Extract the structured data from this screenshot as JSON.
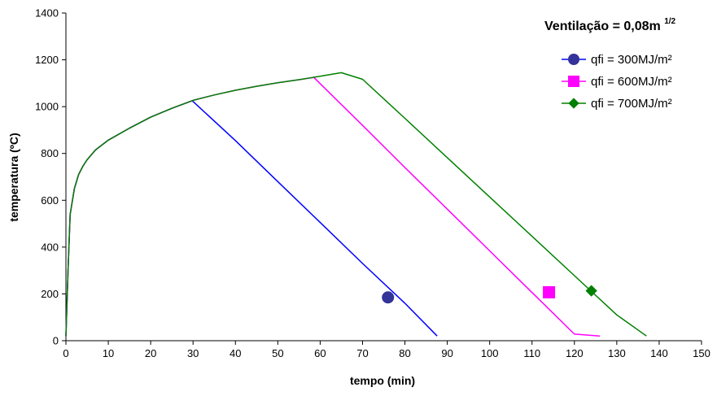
{
  "chart_data": {
    "type": "line",
    "title": "Ventilação = 0,08m",
    "title_superscript": "1/2",
    "xlabel": "tempo (min)",
    "ylabel": "temperatura (ºC)",
    "xlim": [
      0,
      150
    ],
    "ylim": [
      0,
      1400
    ],
    "x_ticks": [
      0,
      10,
      20,
      30,
      40,
      50,
      60,
      70,
      80,
      90,
      100,
      110,
      120,
      130,
      140,
      150
    ],
    "y_ticks": [
      0,
      200,
      400,
      600,
      800,
      1000,
      1200,
      1400
    ],
    "grid": false,
    "legend_position": "top-right",
    "series": [
      {
        "name": "qfi = 300MJ/m²",
        "color": "#0000ff",
        "marker": "circle",
        "marker_color": "#333399",
        "marker_point": [
          76,
          185
        ],
        "points": [
          [
            0,
            20
          ],
          [
            0.5,
            300
          ],
          [
            1,
            540
          ],
          [
            2,
            650
          ],
          [
            3,
            710
          ],
          [
            4,
            745
          ],
          [
            5,
            773
          ],
          [
            7,
            815
          ],
          [
            10,
            857
          ],
          [
            15,
            908
          ],
          [
            20,
            955
          ],
          [
            25,
            993
          ],
          [
            29.8,
            1025
          ],
          [
            40,
            855
          ],
          [
            50,
            680
          ],
          [
            60,
            505
          ],
          [
            70,
            330
          ],
          [
            80,
            160
          ],
          [
            87.6,
            20
          ]
        ]
      },
      {
        "name": "qfi = 600MJ/m²",
        "color": "#ff00ff",
        "marker": "square",
        "marker_color": "#ff00ff",
        "marker_point": [
          114,
          207
        ],
        "points": [
          [
            0,
            20
          ],
          [
            0.5,
            300
          ],
          [
            1,
            540
          ],
          [
            2,
            650
          ],
          [
            3,
            710
          ],
          [
            4,
            745
          ],
          [
            5,
            773
          ],
          [
            7,
            815
          ],
          [
            10,
            857
          ],
          [
            15,
            908
          ],
          [
            20,
            955
          ],
          [
            25,
            993
          ],
          [
            30,
            1027
          ],
          [
            35,
            1050
          ],
          [
            40,
            1070
          ],
          [
            45,
            1087
          ],
          [
            50,
            1102
          ],
          [
            55,
            1115
          ],
          [
            58.5,
            1125
          ],
          [
            70,
            920
          ],
          [
            80,
            740
          ],
          [
            90,
            562
          ],
          [
            100,
            384
          ],
          [
            110,
            206
          ],
          [
            120,
            28
          ],
          [
            126,
            20
          ]
        ]
      },
      {
        "name": "qfi = 700MJ/m²",
        "color": "#008000",
        "marker": "diamond",
        "marker_color": "#008000",
        "marker_point": [
          124,
          213
        ],
        "points": [
          [
            0,
            20
          ],
          [
            0.5,
            300
          ],
          [
            1,
            540
          ],
          [
            2,
            650
          ],
          [
            3,
            710
          ],
          [
            4,
            745
          ],
          [
            5,
            773
          ],
          [
            7,
            815
          ],
          [
            10,
            857
          ],
          [
            15,
            908
          ],
          [
            20,
            955
          ],
          [
            25,
            993
          ],
          [
            30,
            1027
          ],
          [
            35,
            1050
          ],
          [
            40,
            1070
          ],
          [
            45,
            1087
          ],
          [
            50,
            1102
          ],
          [
            55,
            1115
          ],
          [
            60,
            1130
          ],
          [
            65,
            1145
          ],
          [
            70,
            1117
          ],
          [
            80,
            950
          ],
          [
            90,
            782
          ],
          [
            100,
            614
          ],
          [
            110,
            446
          ],
          [
            120,
            278
          ],
          [
            130,
            110
          ],
          [
            137,
            20
          ]
        ]
      }
    ]
  }
}
